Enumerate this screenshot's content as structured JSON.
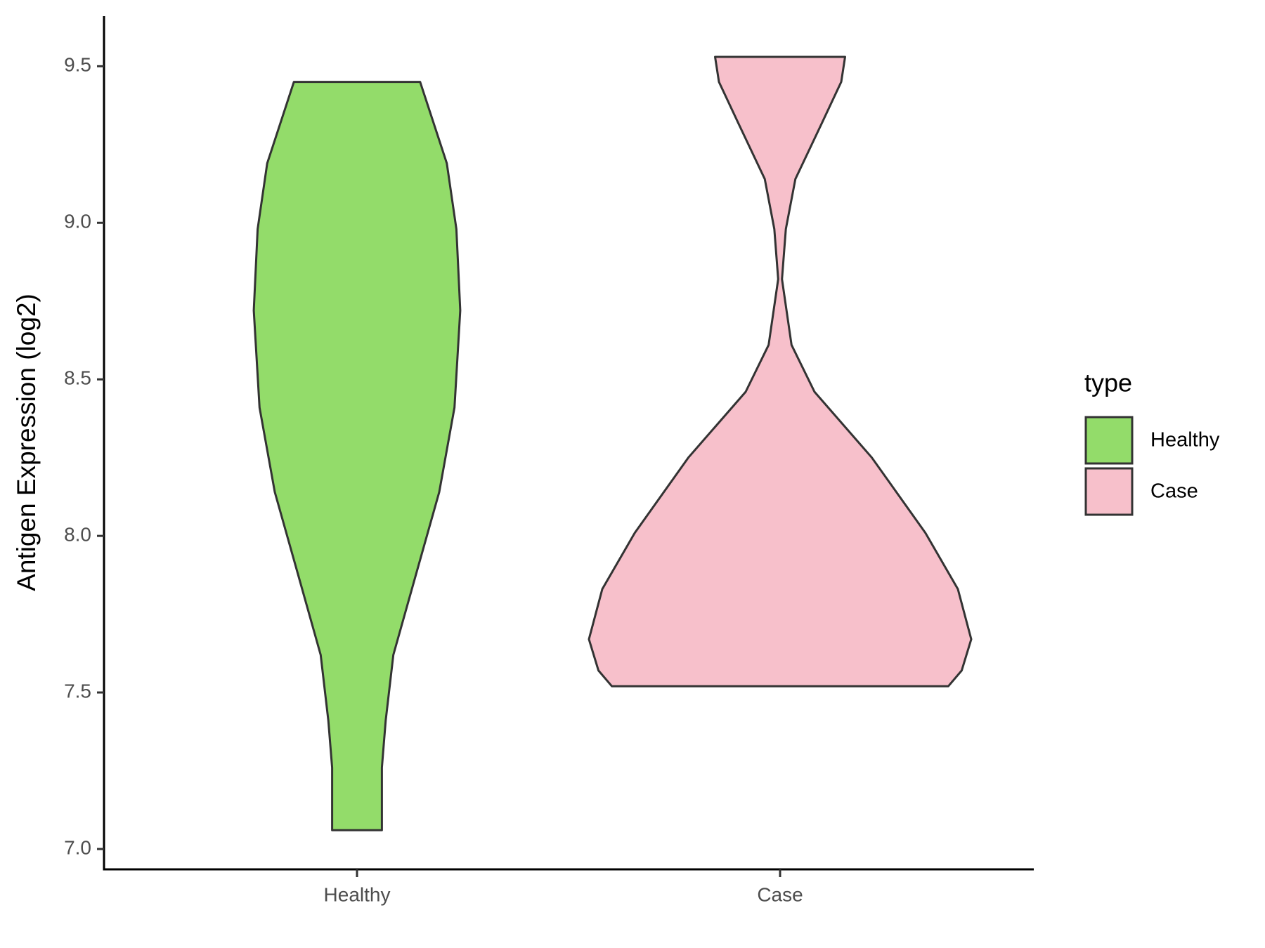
{
  "chart_data": {
    "type": "violin",
    "y_label": "Antigen Expression (log2)",
    "categories": [
      "Healthy",
      "Case"
    ],
    "legend_title": "type",
    "legend": "right",
    "ylim": [
      6.935,
      9.66
    ],
    "yticks": [
      {
        "value": 7.0,
        "label": "7.0"
      },
      7.5,
      {
        "value": 8.0,
        "label": "8.0"
      },
      8.5,
      {
        "value": 9.0,
        "label": "9.0"
      },
      9.5
    ],
    "series": [
      {
        "name": "Healthy",
        "color": "#93dc6a",
        "y": [
          9.45,
          9.19,
          8.98,
          8.72,
          8.41,
          8.14,
          7.88,
          7.62,
          7.41,
          7.26,
          7.06
        ],
        "widths": [
          0.33,
          0.47,
          0.52,
          0.54,
          0.51,
          0.43,
          0.31,
          0.19,
          0.15,
          0.13,
          0.13
        ]
      },
      {
        "name": "Case",
        "color": "#f7c0cb",
        "y": [
          9.53,
          9.45,
          9.32,
          9.14,
          8.98,
          8.82,
          8.61,
          8.46,
          8.25,
          8.01,
          7.83,
          7.67,
          7.57,
          7.52
        ],
        "widths": [
          0.34,
          0.32,
          0.22,
          0.08,
          0.03,
          0.01,
          0.06,
          0.18,
          0.48,
          0.76,
          0.93,
          1.0,
          0.95,
          0.88
        ]
      }
    ]
  }
}
